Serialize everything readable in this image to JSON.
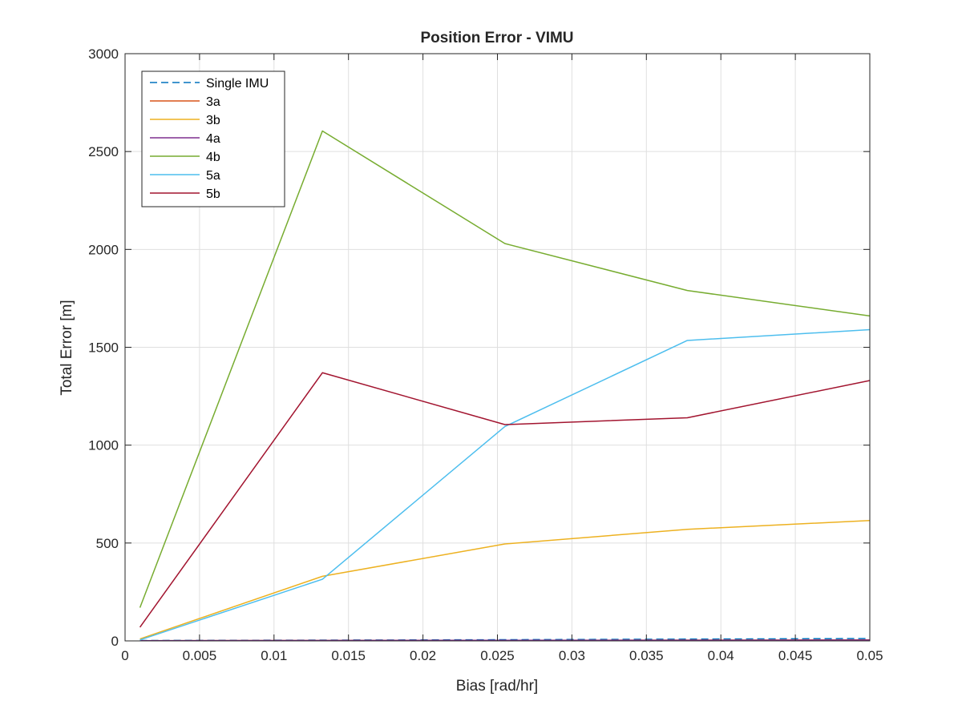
{
  "chart_data": {
    "type": "line",
    "title": "Position Error - VIMU",
    "xlabel": "Bias [rad/hr]",
    "ylabel": "Total Error [m]",
    "xlim": [
      0,
      0.05
    ],
    "ylim": [
      0,
      3000
    ],
    "xticks": [
      0,
      0.005,
      0.01,
      0.015,
      0.02,
      0.025,
      0.03,
      0.035,
      0.04,
      0.045,
      0.05
    ],
    "xtick_labels": [
      "0",
      "0.005",
      "0.01",
      "0.015",
      "0.02",
      "0.025",
      "0.03",
      "0.035",
      "0.04",
      "0.045",
      "0.05"
    ],
    "yticks": [
      0,
      500,
      1000,
      1500,
      2000,
      2500,
      3000
    ],
    "ytick_labels": [
      "0",
      "500",
      "1000",
      "1500",
      "2000",
      "2500",
      "3000"
    ],
    "grid": true,
    "legend_position": "top-left",
    "x": [
      0.001,
      0.01325,
      0.0255,
      0.03775,
      0.05
    ],
    "series": [
      {
        "name": "Single IMU",
        "color": "#0072BD",
        "dash": true,
        "values": [
          2,
          4,
          6,
          9,
          12
        ]
      },
      {
        "name": "3a",
        "color": "#D95319",
        "dash": false,
        "values": [
          1,
          2,
          3,
          4,
          5
        ]
      },
      {
        "name": "3b",
        "color": "#EDB120",
        "dash": false,
        "values": [
          10,
          330,
          495,
          570,
          615
        ]
      },
      {
        "name": "4a",
        "color": "#7E2F8E",
        "dash": false,
        "values": [
          1,
          2,
          3,
          3,
          4
        ]
      },
      {
        "name": "4b",
        "color": "#77AC30",
        "dash": false,
        "values": [
          170,
          2605,
          2030,
          1790,
          1660
        ]
      },
      {
        "name": "5a",
        "color": "#4DBEEE",
        "dash": false,
        "values": [
          5,
          315,
          1095,
          1535,
          1590
        ]
      },
      {
        "name": "5b",
        "color": "#A2142F",
        "dash": false,
        "values": [
          70,
          1370,
          1105,
          1140,
          1330
        ]
      }
    ]
  }
}
